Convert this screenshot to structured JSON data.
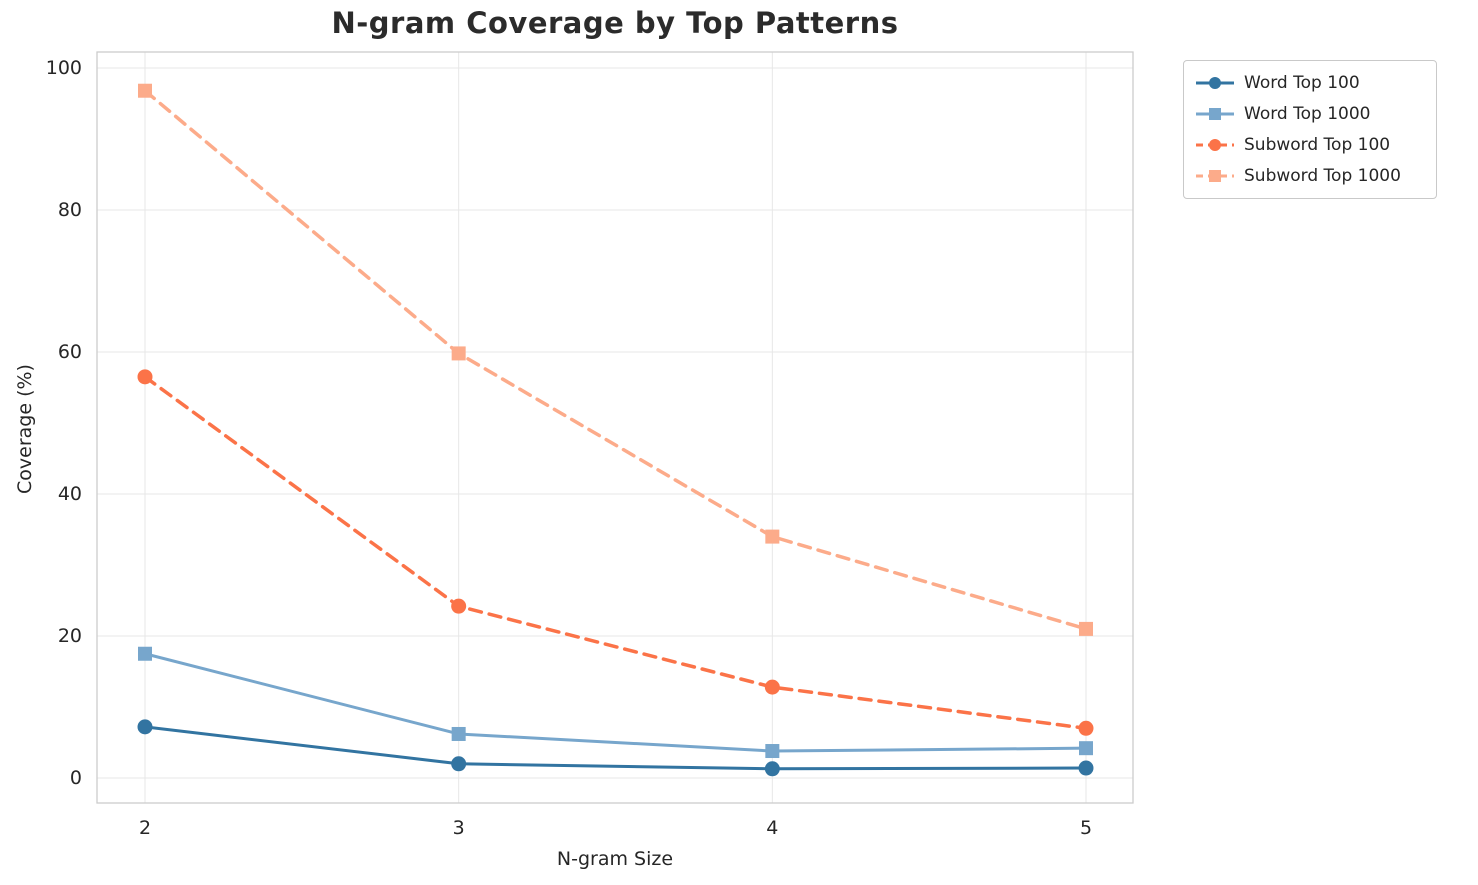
{
  "chart_data": {
    "type": "line",
    "title": "N-gram Coverage by Top Patterns",
    "xlabel": "N-gram Size",
    "ylabel": "Coverage (%)",
    "x": [
      2,
      3,
      4,
      5
    ],
    "xticks": [
      "2",
      "3",
      "4",
      "5"
    ],
    "yticks": [
      0,
      20,
      40,
      60,
      80,
      100
    ],
    "ylim": [
      0,
      100
    ],
    "grid": true,
    "legend_position": "outside-top-right",
    "series": [
      {
        "name": "Word Top 100",
        "values": [
          7.2,
          2.0,
          1.3,
          1.4
        ],
        "color": "#3274a1",
        "marker": "circle",
        "dash": "solid"
      },
      {
        "name": "Word Top 1000",
        "values": [
          17.5,
          6.2,
          3.8,
          4.2
        ],
        "color": "#77a6cc",
        "marker": "square",
        "dash": "solid"
      },
      {
        "name": "Subword Top 100",
        "values": [
          56.5,
          24.2,
          12.8,
          7.0
        ],
        "color": "#fb7348",
        "marker": "circle",
        "dash": "dashed"
      },
      {
        "name": "Subword Top 1000",
        "values": [
          96.8,
          59.8,
          34.0,
          21.0
        ],
        "color": "#fcab8a",
        "marker": "square",
        "dash": "dashed"
      }
    ]
  }
}
